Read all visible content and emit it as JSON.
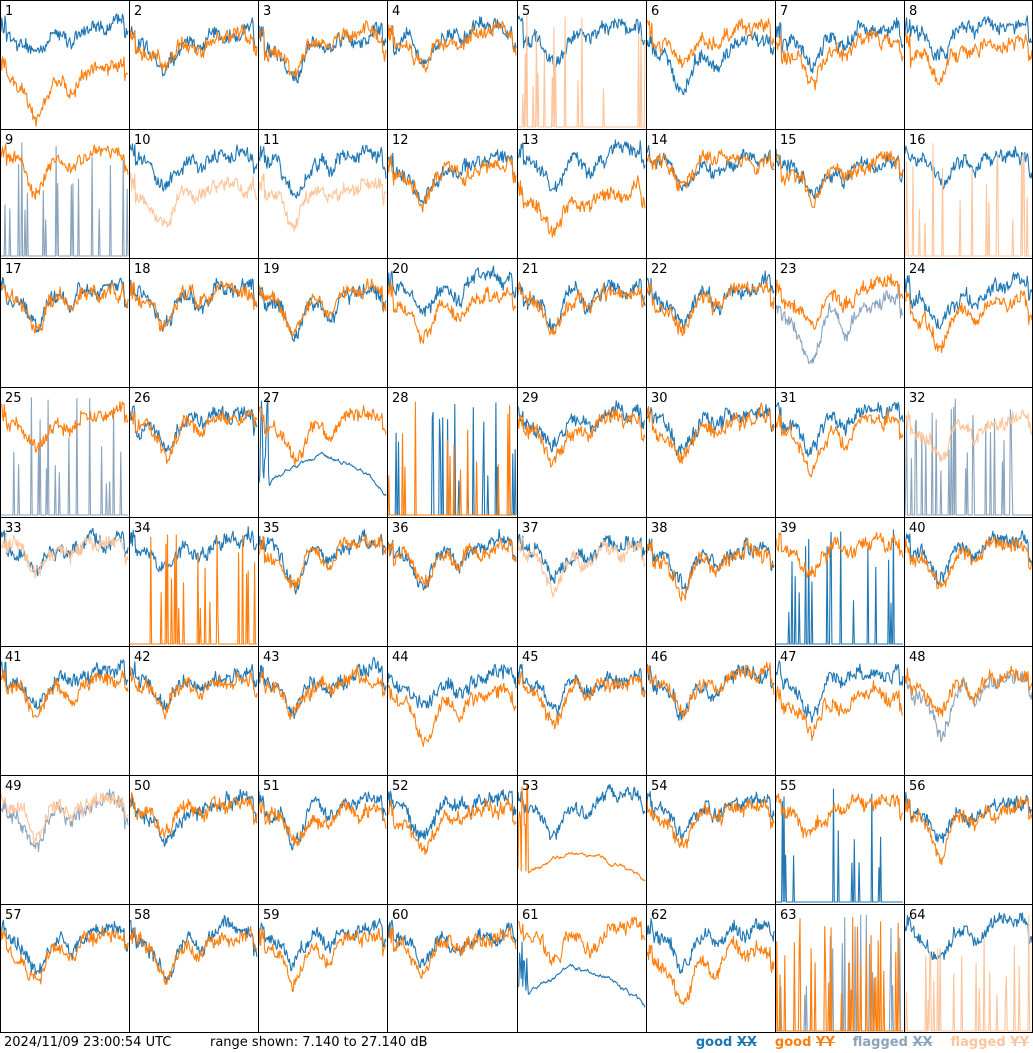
{
  "chart_data": {
    "type": "line",
    "layout": "small-multiples",
    "panel_count": 64,
    "ylim": [
      7.14,
      27.14
    ],
    "grid": false,
    "panels": [
      {
        "id": "1",
        "xx": "good",
        "yy": "good",
        "xx_level": 0.78,
        "yy_level": 0.45,
        "xx_dip": 0.25,
        "yy_dip": 0.55,
        "yy_shape": "low"
      },
      {
        "id": "2",
        "xx": "good",
        "yy": "good",
        "xx_level": 0.72,
        "yy_level": 0.7,
        "xx_dip": 0.35,
        "yy_dip": 0.35
      },
      {
        "id": "3",
        "xx": "good",
        "yy": "good",
        "xx_level": 0.7,
        "yy_level": 0.7,
        "xx_dip": 0.4,
        "yy_dip": 0.4
      },
      {
        "id": "4",
        "xx": "good",
        "yy": "good",
        "xx_level": 0.75,
        "yy_level": 0.73,
        "xx_dip": 0.3,
        "yy_dip": 0.35
      },
      {
        "id": "5",
        "xx": "good",
        "yy": "flagged",
        "xx_level": 0.78,
        "yy_level": 0.0,
        "xx_dip": 0.35,
        "yy_dip": 0.0,
        "yy_shape": "spikes"
      },
      {
        "id": "6",
        "xx": "good",
        "yy": "good",
        "xx_level": 0.65,
        "yy_level": 0.75,
        "xx_dip": 0.6,
        "yy_dip": 0.3,
        "xx_shape": "deepdip"
      },
      {
        "id": "7",
        "xx": "good",
        "yy": "good",
        "xx_level": 0.75,
        "yy_level": 0.65,
        "xx_dip": 0.35,
        "yy_dip": 0.45
      },
      {
        "id": "8",
        "xx": "good",
        "yy": "good",
        "xx_level": 0.78,
        "yy_level": 0.65,
        "xx_dip": 0.3,
        "yy_dip": 0.35
      },
      {
        "id": "9",
        "xx": "flagged",
        "yy": "good",
        "xx_level": 0.0,
        "yy_level": 0.8,
        "xx_dip": 0.0,
        "yy_dip": 0.35,
        "xx_shape": "spikes"
      },
      {
        "id": "10",
        "xx": "good",
        "yy": "flagged",
        "xx_level": 0.8,
        "yy_level": 0.55,
        "xx_dip": 0.35,
        "yy_dip": 0.4
      },
      {
        "id": "11",
        "xx": "good",
        "yy": "flagged",
        "xx_level": 0.78,
        "yy_level": 0.55,
        "xx_dip": 0.4,
        "yy_dip": 0.45
      },
      {
        "id": "12",
        "xx": "good",
        "yy": "good",
        "xx_level": 0.72,
        "yy_level": 0.7,
        "xx_dip": 0.4,
        "yy_dip": 0.35
      },
      {
        "id": "13",
        "xx": "good",
        "yy": "good",
        "xx_level": 0.8,
        "yy_level": 0.5,
        "xx_dip": 0.4,
        "yy_dip": 0.5
      },
      {
        "id": "14",
        "xx": "good",
        "yy": "good",
        "xx_level": 0.78,
        "yy_level": 0.78,
        "xx_dip": 0.3,
        "yy_dip": 0.3
      },
      {
        "id": "15",
        "xx": "good",
        "yy": "good",
        "xx_level": 0.75,
        "yy_level": 0.73,
        "xx_dip": 0.4,
        "yy_dip": 0.4
      },
      {
        "id": "16",
        "xx": "good",
        "yy": "flagged",
        "xx_level": 0.8,
        "yy_level": 0.0,
        "xx_dip": 0.3,
        "yy_dip": 0.0,
        "yy_shape": "spikes"
      },
      {
        "id": "17",
        "xx": "good",
        "yy": "good",
        "xx_level": 0.75,
        "yy_level": 0.73,
        "xx_dip": 0.4,
        "yy_dip": 0.4
      },
      {
        "id": "18",
        "xx": "good",
        "yy": "good",
        "xx_level": 0.75,
        "yy_level": 0.72,
        "xx_dip": 0.45,
        "yy_dip": 0.4
      },
      {
        "id": "19",
        "xx": "good",
        "yy": "good",
        "xx_level": 0.7,
        "yy_level": 0.72,
        "xx_dip": 0.5,
        "yy_dip": 0.4
      },
      {
        "id": "20",
        "xx": "good",
        "yy": "good",
        "xx_level": 0.8,
        "yy_level": 0.72,
        "xx_dip": 0.4,
        "yy_dip": 0.5
      },
      {
        "id": "21",
        "xx": "good",
        "yy": "good",
        "xx_level": 0.75,
        "yy_level": 0.73,
        "xx_dip": 0.4,
        "yy_dip": 0.4
      },
      {
        "id": "22",
        "xx": "good",
        "yy": "good",
        "xx_level": 0.75,
        "yy_level": 0.73,
        "xx_dip": 0.35,
        "yy_dip": 0.35
      },
      {
        "id": "23",
        "xx": "flagged",
        "yy": "good",
        "xx_level": 0.6,
        "yy_level": 0.75,
        "xx_dip": 0.7,
        "yy_dip": 0.35
      },
      {
        "id": "24",
        "xx": "good",
        "yy": "good",
        "xx_level": 0.78,
        "yy_level": 0.65,
        "xx_dip": 0.4,
        "yy_dip": 0.55
      },
      {
        "id": "25",
        "xx": "flagged",
        "yy": "good",
        "xx_level": 0.0,
        "yy_level": 0.78,
        "xx_dip": 0.0,
        "yy_dip": 0.4,
        "xx_shape": "spikes"
      },
      {
        "id": "26",
        "xx": "good",
        "yy": "good",
        "xx_level": 0.78,
        "yy_level": 0.75,
        "xx_dip": 0.35,
        "yy_dip": 0.35
      },
      {
        "id": "27",
        "xx": "good",
        "yy": "good",
        "xx_level": 0.5,
        "yy_level": 0.75,
        "xx_dip": 0.5,
        "yy_dip": 0.4,
        "xx_shape": "hump"
      },
      {
        "id": "28",
        "xx": "good",
        "yy": "good",
        "xx_level": 0.0,
        "yy_level": 0.0,
        "xx_dip": 0.0,
        "yy_dip": 0.0,
        "xx_shape": "spikes",
        "yy_shape": "spikes"
      },
      {
        "id": "29",
        "xx": "good",
        "yy": "good",
        "xx_level": 0.78,
        "yy_level": 0.72,
        "xx_dip": 0.4,
        "yy_dip": 0.4
      },
      {
        "id": "30",
        "xx": "good",
        "yy": "good",
        "xx_level": 0.78,
        "yy_level": 0.75,
        "xx_dip": 0.4,
        "yy_dip": 0.45
      },
      {
        "id": "31",
        "xx": "good",
        "yy": "good",
        "xx_level": 0.8,
        "yy_level": 0.72,
        "xx_dip": 0.45,
        "yy_dip": 0.55
      },
      {
        "id": "32",
        "xx": "flagged",
        "yy": "flagged",
        "xx_level": 0.0,
        "yy_level": 0.72,
        "xx_dip": 0.0,
        "yy_dip": 0.4,
        "xx_shape": "spikes"
      },
      {
        "id": "33",
        "xx": "good",
        "yy": "flagged",
        "xx_level": 0.82,
        "yy_level": 0.8,
        "xx_dip": 0.3,
        "yy_dip": 0.3
      },
      {
        "id": "34",
        "xx": "good",
        "yy": "good",
        "xx_level": 0.8,
        "yy_level": 0.0,
        "xx_dip": 0.3,
        "yy_dip": 0.0,
        "yy_shape": "spikes"
      },
      {
        "id": "35",
        "xx": "good",
        "yy": "good",
        "xx_level": 0.78,
        "yy_level": 0.75,
        "xx_dip": 0.5,
        "yy_dip": 0.45
      },
      {
        "id": "36",
        "xx": "good",
        "yy": "good",
        "xx_level": 0.75,
        "yy_level": 0.73,
        "xx_dip": 0.4,
        "yy_dip": 0.4
      },
      {
        "id": "37",
        "xx": "good",
        "yy": "flagged",
        "xx_level": 0.78,
        "yy_level": 0.75,
        "xx_dip": 0.4,
        "yy_dip": 0.4
      },
      {
        "id": "38",
        "xx": "good",
        "yy": "good",
        "xx_level": 0.75,
        "yy_level": 0.72,
        "xx_dip": 0.4,
        "yy_dip": 0.45
      },
      {
        "id": "39",
        "xx": "good",
        "yy": "good",
        "xx_level": 0.0,
        "yy_level": 0.78,
        "xx_dip": 0.0,
        "yy_dip": 0.35,
        "xx_shape": "spikes"
      },
      {
        "id": "40",
        "xx": "good",
        "yy": "good",
        "xx_level": 0.78,
        "yy_level": 0.75,
        "xx_dip": 0.35,
        "yy_dip": 0.4
      },
      {
        "id": "41",
        "xx": "good",
        "yy": "good",
        "xx_level": 0.78,
        "yy_level": 0.73,
        "xx_dip": 0.4,
        "yy_dip": 0.4
      },
      {
        "id": "42",
        "xx": "good",
        "yy": "good",
        "xx_level": 0.78,
        "yy_level": 0.75,
        "xx_dip": 0.4,
        "yy_dip": 0.4
      },
      {
        "id": "43",
        "xx": "good",
        "yy": "good",
        "xx_level": 0.75,
        "yy_level": 0.73,
        "xx_dip": 0.4,
        "yy_dip": 0.4
      },
      {
        "id": "44",
        "xx": "good",
        "yy": "good",
        "xx_level": 0.75,
        "yy_level": 0.6,
        "xx_dip": 0.35,
        "yy_dip": 0.45
      },
      {
        "id": "45",
        "xx": "good",
        "yy": "good",
        "xx_level": 0.78,
        "yy_level": 0.72,
        "xx_dip": 0.4,
        "yy_dip": 0.45
      },
      {
        "id": "46",
        "xx": "good",
        "yy": "good",
        "xx_level": 0.78,
        "yy_level": 0.75,
        "xx_dip": 0.4,
        "yy_dip": 0.4
      },
      {
        "id": "47",
        "xx": "good",
        "yy": "good",
        "xx_level": 0.8,
        "yy_level": 0.6,
        "xx_dip": 0.4,
        "yy_dip": 0.45
      },
      {
        "id": "48",
        "xx": "flagged",
        "yy": "good",
        "xx_level": 0.7,
        "yy_level": 0.75,
        "xx_dip": 0.55,
        "yy_dip": 0.45
      },
      {
        "id": "49",
        "xx": "flagged",
        "yy": "flagged",
        "xx_level": 0.75,
        "yy_level": 0.78,
        "xx_dip": 0.45,
        "yy_dip": 0.4
      },
      {
        "id": "50",
        "xx": "good",
        "yy": "good",
        "xx_level": 0.75,
        "yy_level": 0.78,
        "xx_dip": 0.4,
        "yy_dip": 0.35
      },
      {
        "id": "51",
        "xx": "good",
        "yy": "good",
        "xx_level": 0.78,
        "yy_level": 0.73,
        "xx_dip": 0.4,
        "yy_dip": 0.4
      },
      {
        "id": "52",
        "xx": "good",
        "yy": "good",
        "xx_level": 0.8,
        "yy_level": 0.72,
        "xx_dip": 0.35,
        "yy_dip": 0.4
      },
      {
        "id": "53",
        "xx": "good",
        "yy": "good",
        "xx_level": 0.8,
        "yy_level": 0.45,
        "xx_dip": 0.35,
        "yy_dip": 0.55,
        "yy_shape": "hump"
      },
      {
        "id": "54",
        "xx": "good",
        "yy": "good",
        "xx_level": 0.78,
        "yy_level": 0.72,
        "xx_dip": 0.4,
        "yy_dip": 0.4
      },
      {
        "id": "55",
        "xx": "good",
        "yy": "good",
        "xx_level": 0.0,
        "yy_level": 0.78,
        "xx_dip": 0.0,
        "yy_dip": 0.35,
        "xx_shape": "spikes"
      },
      {
        "id": "56",
        "xx": "good",
        "yy": "good",
        "xx_level": 0.78,
        "yy_level": 0.72,
        "xx_dip": 0.4,
        "yy_dip": 0.45
      },
      {
        "id": "57",
        "xx": "good",
        "yy": "good",
        "xx_level": 0.78,
        "yy_level": 0.73,
        "xx_dip": 0.4,
        "yy_dip": 0.45
      },
      {
        "id": "58",
        "xx": "good",
        "yy": "good",
        "xx_level": 0.78,
        "yy_level": 0.72,
        "xx_dip": 0.45,
        "yy_dip": 0.5
      },
      {
        "id": "59",
        "xx": "good",
        "yy": "good",
        "xx_level": 0.78,
        "yy_level": 0.72,
        "xx_dip": 0.4,
        "yy_dip": 0.45
      },
      {
        "id": "60",
        "xx": "good",
        "yy": "good",
        "xx_level": 0.78,
        "yy_level": 0.73,
        "xx_dip": 0.4,
        "yy_dip": 0.4
      },
      {
        "id": "61",
        "xx": "good",
        "yy": "good",
        "xx_level": 0.55,
        "yy_level": 0.78,
        "xx_dip": 0.6,
        "yy_dip": 0.4,
        "xx_shape": "hump"
      },
      {
        "id": "62",
        "xx": "good",
        "yy": "good",
        "xx_level": 0.8,
        "yy_level": 0.6,
        "xx_dip": 0.4,
        "yy_dip": 0.55
      },
      {
        "id": "63",
        "xx": "flagged",
        "yy": "good",
        "xx_level": 0.0,
        "yy_level": 0.0,
        "xx_dip": 0.0,
        "yy_dip": 0.0,
        "xx_shape": "spikes",
        "yy_shape": "spikes"
      },
      {
        "id": "64",
        "xx": "good",
        "yy": "flagged",
        "xx_level": 0.82,
        "yy_level": 0.0,
        "xx_dip": 0.35,
        "yy_dip": 0.0,
        "yy_shape": "spikes"
      }
    ]
  },
  "footer": {
    "timestamp": "2024/11/09 23:00:54 UTC",
    "range_text": "range shown: 7.140 to 27.140 dB",
    "legend": [
      {
        "word": "good",
        "pol": "XX",
        "color": "#1f77b4"
      },
      {
        "word": "good",
        "pol": "YY",
        "color": "#ff7f0e"
      },
      {
        "word": "flagged",
        "pol": "XX",
        "color": "#8aa4be"
      },
      {
        "word": "flagged",
        "pol": "YY",
        "color": "#fdc59c"
      }
    ]
  },
  "colors": {
    "good_xx": "#1f77b4",
    "good_yy": "#ff7f0e",
    "flagged_xx": "#8aa4be",
    "flagged_yy": "#fdc59c"
  }
}
